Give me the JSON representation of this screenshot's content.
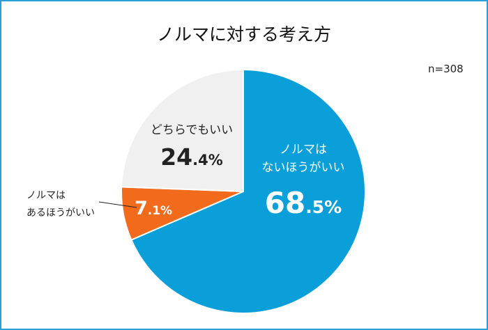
{
  "title": "ノルマに対する考え方",
  "sample_size": "n=308",
  "colors": {
    "border": "#2a9fd6"
  },
  "chart_data": {
    "type": "pie",
    "title": "ノルマに対する考え方",
    "slices": [
      {
        "label_lines": [
          "ノルマは",
          "ないほうがいい"
        ],
        "value": 68.5,
        "int": "68",
        "dec": ".5%",
        "color": "#0a9fd8"
      },
      {
        "label_lines": [
          "ノルマは",
          "あるほうがいい"
        ],
        "value": 7.1,
        "int": "7",
        "dec": ".1%",
        "color": "#f26b1d"
      },
      {
        "label_lines": [
          "どちらでもいい"
        ],
        "value": 24.4,
        "int": "24",
        "dec": ".4%",
        "color": "#f0f0f0"
      }
    ]
  }
}
